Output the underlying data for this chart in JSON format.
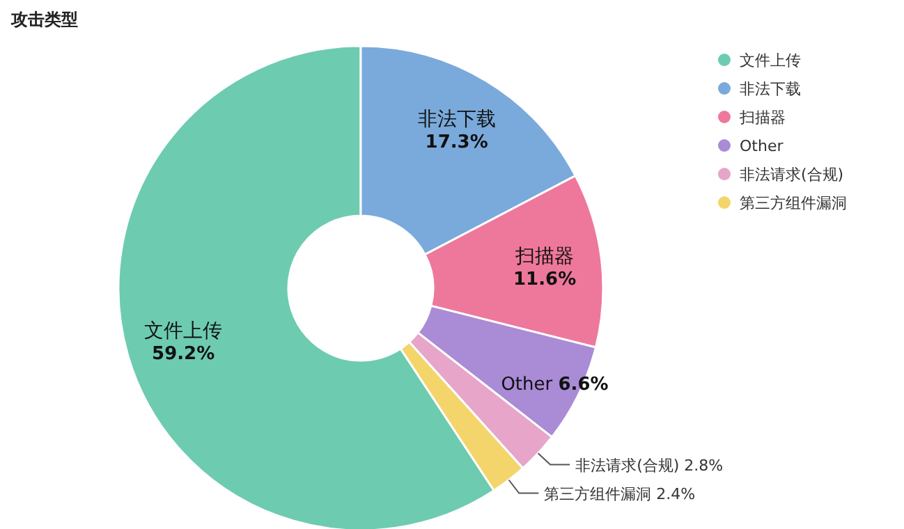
{
  "chart_data": {
    "type": "donut",
    "title": "攻击类型",
    "categories": [
      "文件上传",
      "非法下载",
      "扫描器",
      "Other",
      "非法请求(合规)",
      "第三方组件漏洞"
    ],
    "values": [
      59.2,
      17.3,
      11.6,
      6.6,
      2.8,
      2.4
    ],
    "colors": [
      "#6dcbb0",
      "#7aaadb",
      "#ee789c",
      "#a98bd6",
      "#e6a5c9",
      "#f3d56b"
    ],
    "value_labels": [
      "59.2%",
      "17.3%",
      "11.6%",
      "6.6%",
      "2.8%",
      "2.4%"
    ],
    "legend": "top right"
  }
}
